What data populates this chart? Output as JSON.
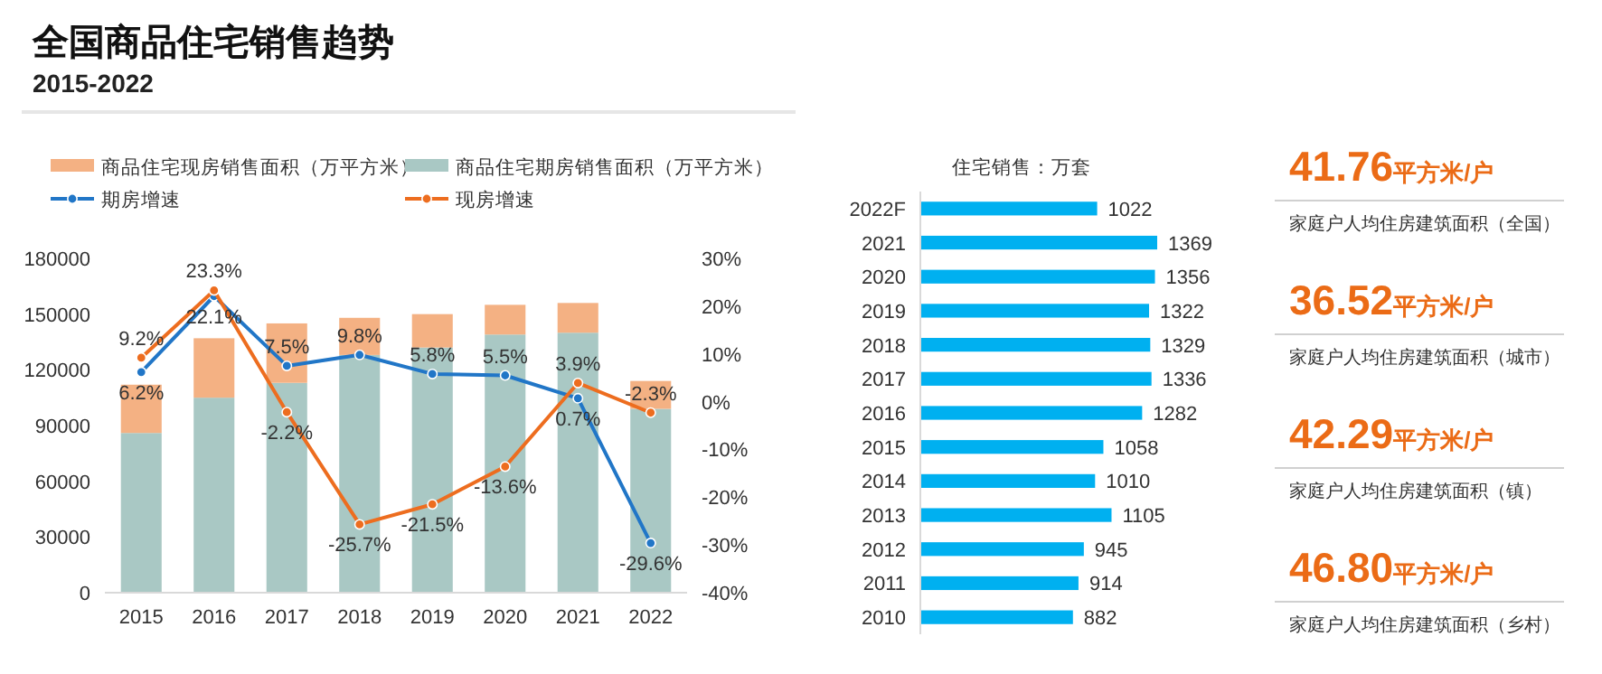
{
  "chart_data": [
    {
      "type": "bar",
      "title": "全国商品住宅销售趋势",
      "subtitle": "2015-2022",
      "categories": [
        "2015",
        "2016",
        "2017",
        "2018",
        "2019",
        "2020",
        "2021",
        "2022"
      ],
      "stacked": true,
      "legend": "top",
      "marker": "circle",
      "grid": false,
      "series": [
        {
          "name": "商品住宅期房销售面积（万平方米）",
          "color": "#a9c8c4",
          "values": [
            86000,
            105000,
            113000,
            128000,
            132000,
            139000,
            140000,
            99000
          ]
        },
        {
          "name": "商品住宅现房销售面积（万平方米）",
          "color": "#f4b183",
          "values": [
            26000,
            32000,
            32000,
            20000,
            18000,
            16000,
            16000,
            15000
          ]
        },
        {
          "type": "line",
          "axis": "y2",
          "name": "期房增速",
          "color": "#2176c7",
          "values": [
            6.2,
            22.1,
            7.5,
            9.8,
            5.8,
            5.5,
            0.7,
            -29.6
          ],
          "value_labels": [
            "6.2%",
            "22.1%",
            "7.5%",
            "9.8%",
            "5.8%",
            "5.5%",
            "0.7%",
            "-29.6%"
          ]
        },
        {
          "type": "line",
          "axis": "y2",
          "name": "现房增速",
          "color": "#ed6d1f",
          "values": [
            9.2,
            23.3,
            -2.2,
            -25.7,
            -21.5,
            -13.6,
            3.9,
            -2.3
          ],
          "value_labels": [
            "9.2%",
            "23.3%",
            "-2.2%",
            "-25.7%",
            "-21.5%",
            "-13.6%",
            "3.9%",
            "-2.3%"
          ]
        }
      ],
      "ylim": [
        0,
        180000
      ],
      "yticks": [
        0,
        30000,
        60000,
        90000,
        120000,
        150000,
        180000
      ],
      "y2lim": [
        -40,
        30
      ],
      "y2ticks": [
        {
          "value": -40,
          "label": "-40%"
        },
        {
          "value": -30,
          "label": "-30%"
        },
        {
          "value": -20,
          "label": "-20%"
        },
        {
          "value": -10,
          "label": "-10%"
        },
        {
          "value": 0,
          "label": "0%"
        },
        {
          "value": 10,
          "label": "10%"
        },
        {
          "value": 20,
          "label": "20%"
        },
        {
          "value": 30,
          "label": "30%"
        }
      ]
    },
    {
      "type": "bar",
      "orientation": "horizontal",
      "title": "住宅销售：万套",
      "categories": [
        "2022F",
        "2021",
        "2020",
        "2019",
        "2018",
        "2017",
        "2016",
        "2015",
        "2014",
        "2013",
        "2012",
        "2011",
        "2010"
      ],
      "values": [
        1022,
        1369,
        1356,
        1322,
        1329,
        1336,
        1282,
        1058,
        1010,
        1105,
        945,
        914,
        882
      ],
      "color": "#00b0f0",
      "data_labels": true,
      "tick_labels": "y"
    },
    {
      "type": "other",
      "annotations": [
        "41.76",
        "平方米/户",
        "家庭户人均住房建筑面积（全国）",
        "36.52",
        "平方米/户",
        "家庭户人均住房建筑面积（城市）",
        "42.29",
        "平方米/户",
        "家庭户人均住房建筑面积（镇）",
        "46.80",
        "平方米/户",
        "家庭户人均住房建筑面积（乡村）"
      ]
    }
  ]
}
